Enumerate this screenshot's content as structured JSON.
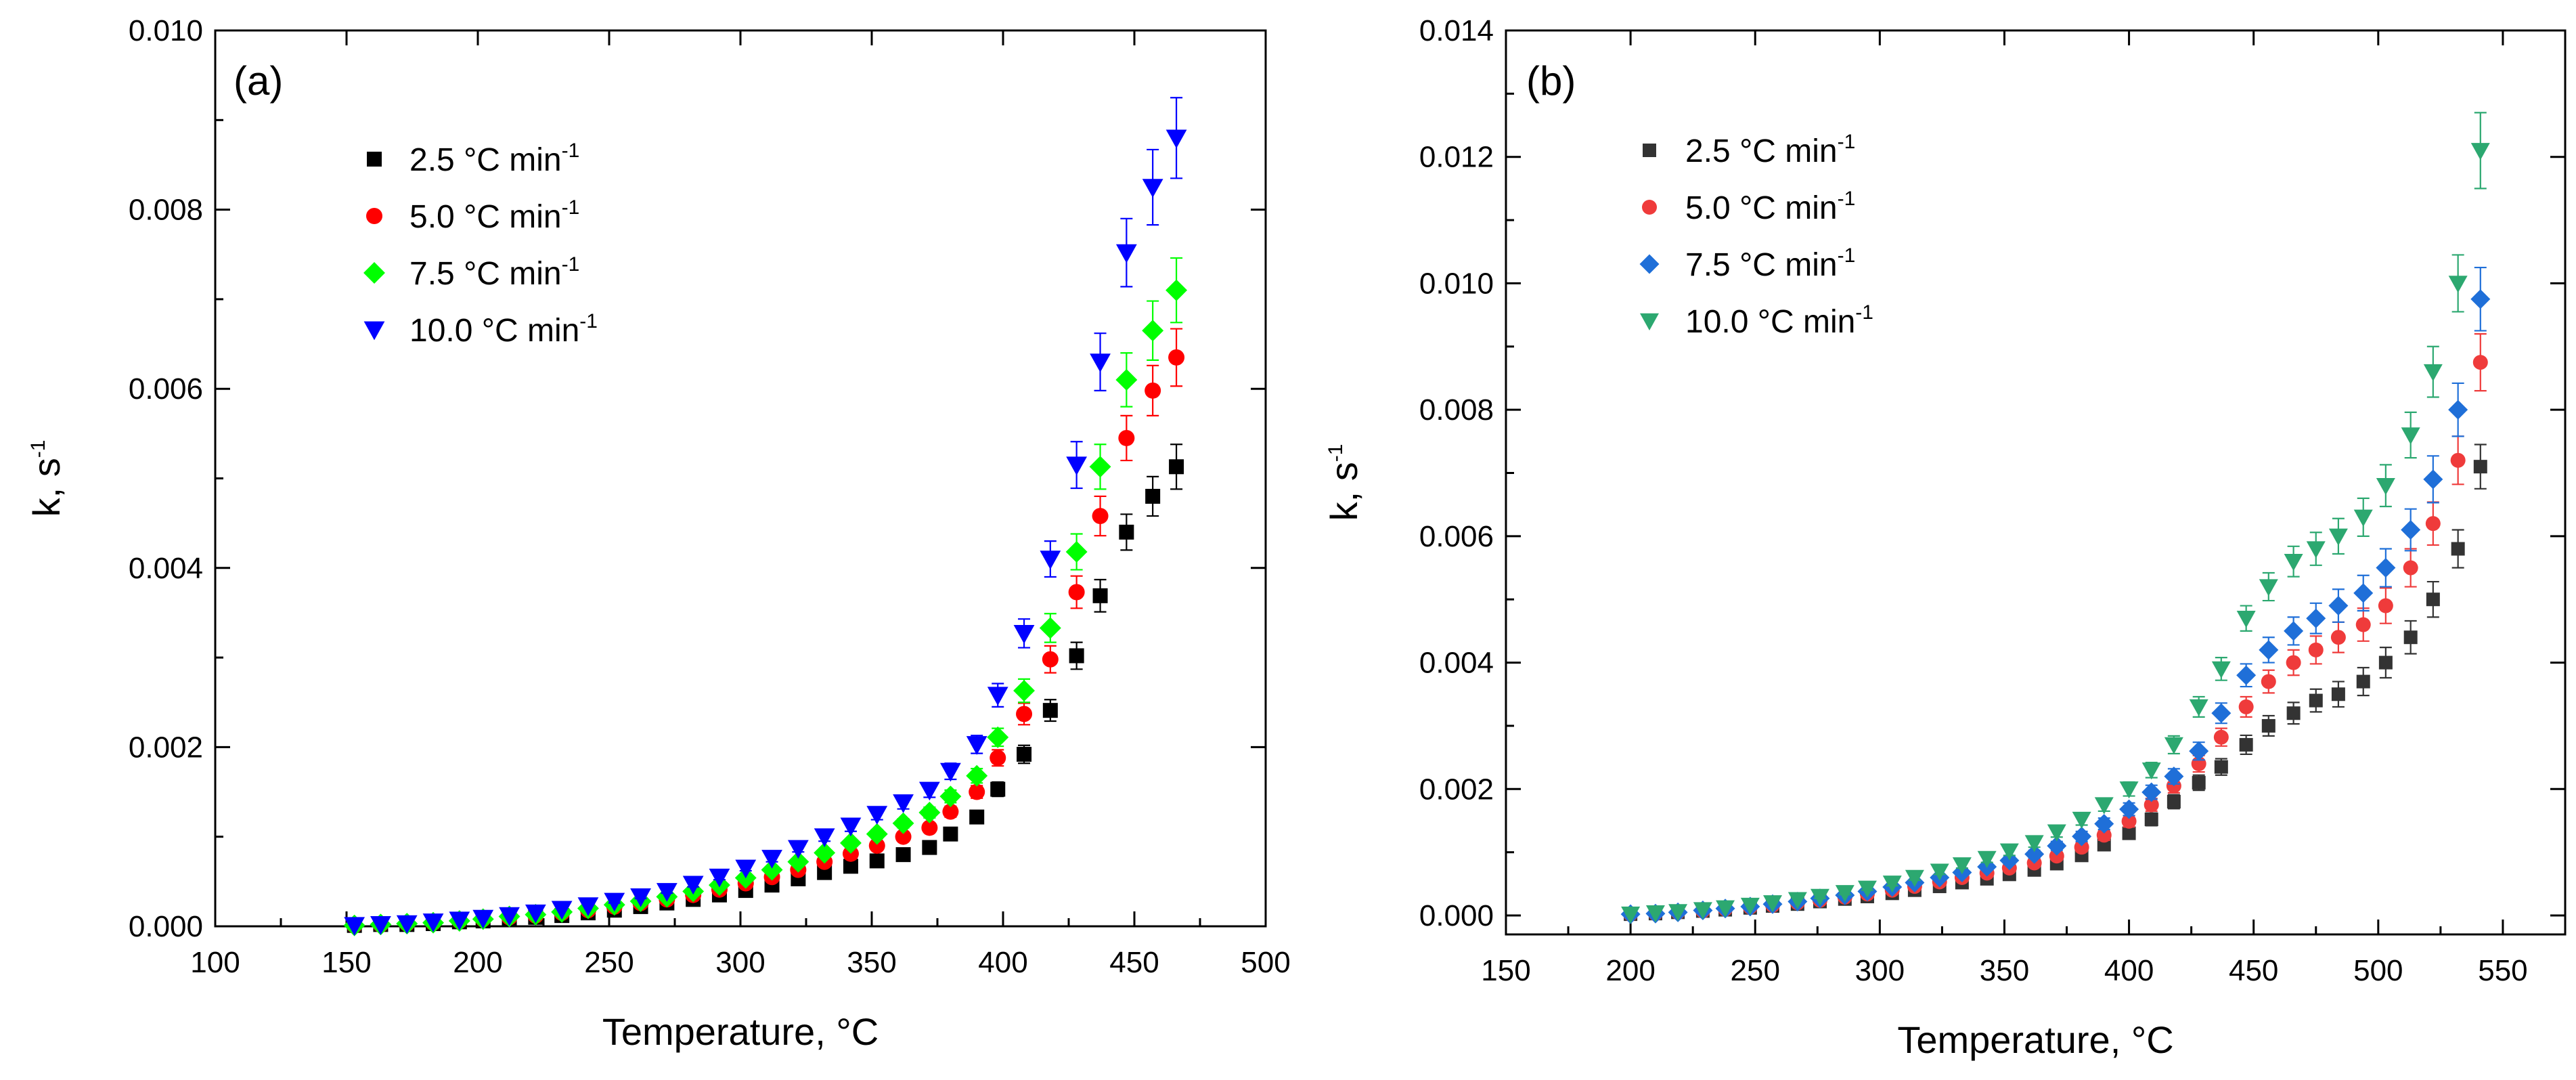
{
  "chart_data": [
    {
      "type": "scatter",
      "panel_label": "(a)",
      "xlabel": "Temperature, °C",
      "ylabel": "k, s",
      "ylabel_sup": "-1",
      "xlim": [
        100,
        500
      ],
      "ylim": [
        0,
        0.01
      ],
      "xticks": [
        100,
        150,
        200,
        250,
        300,
        350,
        400,
        450,
        500
      ],
      "xtick_labels": [
        "100",
        "150",
        "200",
        "250",
        "300",
        "350",
        "400",
        "450",
        "500"
      ],
      "yticks": [
        0,
        0.002,
        0.004,
        0.006,
        0.008,
        0.01
      ],
      "ytick_labels": [
        "0.000",
        "0.002",
        "0.004",
        "0.006",
        "0.008",
        "0.010"
      ],
      "grid": false,
      "legend_position": "top-left",
      "legend_unit": "°C min",
      "legend_unit_sup": "-1",
      "x": [
        153,
        163,
        173,
        183,
        193,
        202,
        212,
        222,
        232,
        242,
        252,
        262,
        272,
        282,
        292,
        302,
        312,
        322,
        332,
        342,
        352,
        362,
        372,
        380,
        390,
        398,
        408,
        418,
        428,
        437,
        447,
        457,
        466
      ],
      "series": [
        {
          "name": "2.5",
          "marker": "square",
          "color": "#000000",
          "values": [
            1e-05,
            2e-05,
            2e-05,
            3e-05,
            5e-05,
            6e-05,
            8e-05,
            0.0001,
            0.00012,
            0.00015,
            0.00018,
            0.00022,
            0.00026,
            0.0003,
            0.00035,
            0.0004,
            0.00046,
            0.00053,
            0.0006,
            0.00067,
            0.00073,
            0.0008,
            0.00088,
            0.00103,
            0.00122,
            0.00153,
            0.00192,
            0.00241,
            0.00302,
            0.00369,
            0.0044,
            0.0048,
            0.00513
          ],
          "errors": [
            1e-05,
            1e-05,
            1e-05,
            1e-05,
            1e-05,
            1e-05,
            1e-05,
            1e-05,
            1e-05,
            1e-05,
            1e-05,
            1e-05,
            1e-05,
            2e-05,
            2e-05,
            2e-05,
            2e-05,
            2e-05,
            3e-05,
            3e-05,
            3e-05,
            3e-05,
            4e-05,
            5e-05,
            6e-05,
            8e-05,
            0.0001,
            0.00012,
            0.00015,
            0.00018,
            0.0002,
            0.00022,
            0.00025
          ]
        },
        {
          "name": "5.0",
          "marker": "circle",
          "color": "#ff0000",
          "values": [
            1e-05,
            2e-05,
            3e-05,
            4e-05,
            6e-05,
            8e-05,
            0.0001,
            0.00012,
            0.00015,
            0.00018,
            0.00022,
            0.00026,
            0.0003,
            0.00035,
            0.00041,
            0.00048,
            0.00055,
            0.00063,
            0.00072,
            0.00081,
            0.0009,
            0.001,
            0.0011,
            0.00128,
            0.0015,
            0.00188,
            0.00237,
            0.00298,
            0.00373,
            0.00458,
            0.00545,
            0.00598,
            0.00635
          ],
          "errors": [
            1e-05,
            1e-05,
            1e-05,
            1e-05,
            1e-05,
            1e-05,
            1e-05,
            1e-05,
            1e-05,
            1e-05,
            1e-05,
            1e-05,
            2e-05,
            2e-05,
            2e-05,
            2e-05,
            3e-05,
            3e-05,
            3e-05,
            4e-05,
            4e-05,
            5e-05,
            5e-05,
            6e-05,
            7e-05,
            9e-05,
            0.00012,
            0.00015,
            0.00018,
            0.00022,
            0.00025,
            0.00028,
            0.00032
          ]
        },
        {
          "name": "7.5",
          "marker": "diamond",
          "color": "#00ff00",
          "values": [
            1e-05,
            2e-05,
            3e-05,
            4e-05,
            6e-05,
            8e-05,
            0.00011,
            0.00013,
            0.00016,
            0.0002,
            0.00024,
            0.00028,
            0.00033,
            0.00039,
            0.00046,
            0.00054,
            0.00063,
            0.00072,
            0.00082,
            0.00093,
            0.00103,
            0.00115,
            0.00127,
            0.00145,
            0.00168,
            0.00211,
            0.00263,
            0.00333,
            0.00418,
            0.00513,
            0.0061,
            0.00665,
            0.0071
          ],
          "errors": [
            1e-05,
            1e-05,
            1e-05,
            1e-05,
            1e-05,
            1e-05,
            1e-05,
            1e-05,
            1e-05,
            1e-05,
            1e-05,
            2e-05,
            2e-05,
            2e-05,
            2e-05,
            3e-05,
            3e-05,
            3e-05,
            4e-05,
            4e-05,
            5e-05,
            5e-05,
            6e-05,
            7e-05,
            8e-05,
            0.0001,
            0.00013,
            0.00016,
            0.0002,
            0.00025,
            0.0003,
            0.00033,
            0.00036
          ]
        },
        {
          "name": "10.0",
          "marker": "triangle-down",
          "color": "#0000ff",
          "values": [
            1e-05,
            2e-05,
            3e-05,
            5e-05,
            7e-05,
            9e-05,
            0.00012,
            0.00015,
            0.00019,
            0.00023,
            0.00028,
            0.00033,
            0.00039,
            0.00047,
            0.00055,
            0.00065,
            0.00076,
            0.00087,
            0.001,
            0.00112,
            0.00125,
            0.00138,
            0.00152,
            0.00173,
            0.00203,
            0.00258,
            0.00327,
            0.0041,
            0.00515,
            0.0063,
            0.00752,
            0.00825,
            0.0088
          ],
          "errors": [
            1e-05,
            1e-05,
            1e-05,
            1e-05,
            1e-05,
            1e-05,
            1e-05,
            1e-05,
            1e-05,
            1e-05,
            2e-05,
            2e-05,
            2e-05,
            3e-05,
            3e-05,
            3e-05,
            4e-05,
            4e-05,
            5e-05,
            6e-05,
            6e-05,
            7e-05,
            8e-05,
            9e-05,
            0.0001,
            0.00013,
            0.00016,
            0.0002,
            0.00026,
            0.00032,
            0.00038,
            0.00042,
            0.00045
          ]
        }
      ]
    },
    {
      "type": "scatter",
      "panel_label": "(b)",
      "xlabel": "Temperature, °C",
      "ylabel": "k, s",
      "ylabel_sup": "-1",
      "xlim": [
        150,
        575
      ],
      "ylim": [
        -0.0003,
        0.014
      ],
      "xticks": [
        150,
        200,
        250,
        300,
        350,
        400,
        450,
        500,
        550
      ],
      "xtick_labels": [
        "150",
        "200",
        "250",
        "300",
        "350",
        "400",
        "450",
        "500",
        "550"
      ],
      "yticks": [
        0,
        0.002,
        0.004,
        0.006,
        0.008,
        0.01,
        0.012,
        0.014
      ],
      "ytick_labels": [
        "0.000",
        "0.002",
        "0.004",
        "0.006",
        "0.008",
        "0.010",
        "0.012",
        "0.014"
      ],
      "grid": false,
      "legend_position": "top-left",
      "legend_unit": "°C min",
      "legend_unit_sup": "-1",
      "x": [
        200,
        210,
        219,
        229,
        238,
        248,
        257,
        267,
        276,
        286,
        295,
        305,
        314,
        324,
        333,
        343,
        352,
        362,
        371,
        381,
        390,
        400,
        409,
        418,
        428,
        437,
        447,
        456,
        466,
        475,
        484,
        494,
        503,
        513,
        522,
        532,
        541
      ],
      "series": [
        {
          "name": "2.5",
          "marker": "square",
          "color": "#333333",
          "values": [
            2e-05,
            3e-05,
            5e-05,
            7e-05,
            9e-05,
            0.00012,
            0.00015,
            0.00018,
            0.00022,
            0.00026,
            0.0003,
            0.00035,
            0.0004,
            0.00046,
            0.00052,
            0.00058,
            0.00065,
            0.00072,
            0.00082,
            0.00095,
            0.00112,
            0.0013,
            0.00152,
            0.0018,
            0.0021,
            0.00235,
            0.0027,
            0.003,
            0.0032,
            0.0034,
            0.0035,
            0.0037,
            0.004,
            0.0044,
            0.005,
            0.0058,
            0.0071
          ],
          "errors": [
            1e-05,
            1e-05,
            1e-05,
            1e-05,
            1e-05,
            1e-05,
            2e-05,
            2e-05,
            2e-05,
            2e-05,
            3e-05,
            3e-05,
            3e-05,
            4e-05,
            4e-05,
            5e-05,
            5e-05,
            6e-05,
            6e-05,
            7e-05,
            8e-05,
            9e-05,
            0.0001,
            0.00011,
            0.00012,
            0.00013,
            0.00015,
            0.00016,
            0.00017,
            0.00018,
            0.0002,
            0.00022,
            0.00024,
            0.00026,
            0.00028,
            0.0003,
            0.00035
          ]
        },
        {
          "name": "5.0",
          "marker": "circle",
          "color": "#ef3b3b",
          "values": [
            2e-05,
            3e-05,
            5e-05,
            7e-05,
            0.0001,
            0.00013,
            0.00016,
            0.0002,
            0.00024,
            0.00029,
            0.00034,
            0.0004,
            0.00046,
            0.00053,
            0.0006,
            0.00067,
            0.00075,
            0.00083,
            0.00094,
            0.00108,
            0.00127,
            0.00149,
            0.00175,
            0.00205,
            0.0024,
            0.00282,
            0.0033,
            0.0037,
            0.004,
            0.0042,
            0.0044,
            0.0046,
            0.0049,
            0.0055,
            0.0062,
            0.0072,
            0.00875
          ],
          "errors": [
            1e-05,
            1e-05,
            1e-05,
            1e-05,
            1e-05,
            1e-05,
            2e-05,
            2e-05,
            2e-05,
            2e-05,
            3e-05,
            3e-05,
            3e-05,
            4e-05,
            4e-05,
            5e-05,
            5e-05,
            6e-05,
            6e-05,
            7e-05,
            8e-05,
            9e-05,
            0.0001,
            0.00011,
            0.00013,
            0.00014,
            0.00016,
            0.00018,
            0.0002,
            0.00022,
            0.00024,
            0.00026,
            0.00028,
            0.0003,
            0.00034,
            0.00038,
            0.00045
          ]
        },
        {
          "name": "7.5",
          "marker": "diamond",
          "color": "#1f6fd8",
          "values": [
            2e-05,
            3e-05,
            5e-05,
            8e-05,
            0.00011,
            0.00014,
            0.00018,
            0.00022,
            0.00027,
            0.00032,
            0.00038,
            0.00045,
            0.00052,
            0.0006,
            0.00068,
            0.00077,
            0.00087,
            0.00097,
            0.0011,
            0.00125,
            0.00145,
            0.00168,
            0.00195,
            0.0022,
            0.0026,
            0.0032,
            0.0038,
            0.0042,
            0.0045,
            0.0047,
            0.0049,
            0.0051,
            0.0055,
            0.0061,
            0.0069,
            0.008,
            0.00975
          ],
          "errors": [
            1e-05,
            1e-05,
            1e-05,
            1e-05,
            1e-05,
            1e-05,
            2e-05,
            2e-05,
            2e-05,
            3e-05,
            3e-05,
            3e-05,
            4e-05,
            4e-05,
            5e-05,
            5e-05,
            6e-05,
            6e-05,
            7e-05,
            8e-05,
            9e-05,
            0.0001,
            0.00011,
            0.00012,
            0.00014,
            0.00016,
            0.00018,
            0.0002,
            0.00022,
            0.00024,
            0.00026,
            0.00028,
            0.0003,
            0.00033,
            0.00037,
            0.00042,
            0.0005
          ]
        },
        {
          "name": "10.0",
          "marker": "triangle-down",
          "color": "#2ca870",
          "values": [
            2e-05,
            4e-05,
            6e-05,
            9e-05,
            0.00012,
            0.00016,
            0.0002,
            0.00025,
            0.0003,
            0.00036,
            0.00043,
            0.00051,
            0.0006,
            0.0007,
            0.0008,
            0.0009,
            0.00102,
            0.00115,
            0.00132,
            0.00152,
            0.00175,
            0.002,
            0.0023,
            0.0027,
            0.0033,
            0.0039,
            0.0047,
            0.0052,
            0.0056,
            0.0058,
            0.006,
            0.0063,
            0.0068,
            0.0076,
            0.0086,
            0.01,
            0.0121
          ],
          "errors": [
            1e-05,
            1e-05,
            1e-05,
            1e-05,
            1e-05,
            2e-05,
            2e-05,
            2e-05,
            3e-05,
            3e-05,
            3e-05,
            4e-05,
            4e-05,
            5e-05,
            5e-05,
            6e-05,
            7e-05,
            7e-05,
            8e-05,
            9e-05,
            0.0001,
            0.00011,
            0.00012,
            0.00014,
            0.00016,
            0.00018,
            0.0002,
            0.00022,
            0.00024,
            0.00026,
            0.00028,
            0.0003,
            0.00033,
            0.00036,
            0.0004,
            0.00045,
            0.0006
          ]
        }
      ]
    }
  ]
}
